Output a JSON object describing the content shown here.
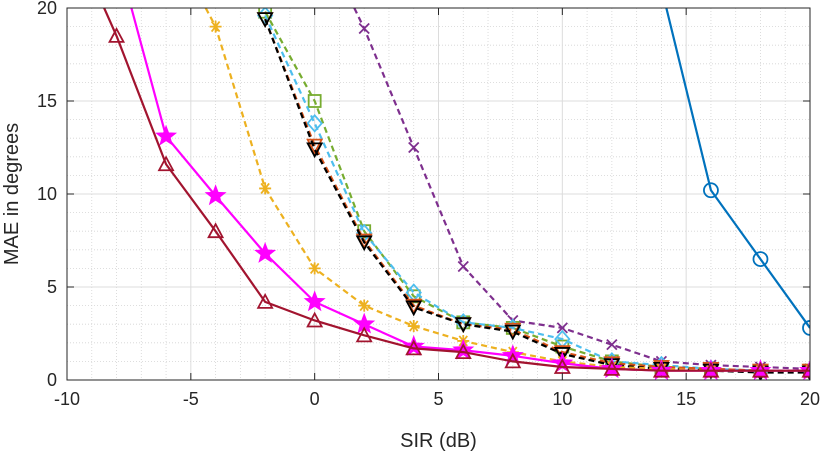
{
  "chart_data": {
    "type": "line",
    "title": "",
    "xlabel": "SIR (dB)",
    "ylabel": "MAE in degrees",
    "xlim": [
      -10,
      20
    ],
    "ylim": [
      0,
      20
    ],
    "xticks": [
      -10,
      -5,
      0,
      5,
      10,
      15,
      20
    ],
    "yticks": [
      0,
      5,
      10,
      15,
      20
    ],
    "xtick_labels": [
      "-10",
      "-5",
      "0",
      "5",
      "10",
      "15",
      "20"
    ],
    "ytick_labels": [
      "0",
      "5",
      "10",
      "15",
      "20"
    ],
    "grid": true,
    "minor_grid": true,
    "legend": "none",
    "series": [
      {
        "key": "blue-circle",
        "color": "#0072BD",
        "dash": "solid",
        "marker": "circle",
        "x": [
          14.2,
          16,
          18,
          20
        ],
        "y": [
          20,
          10.2,
          6.5,
          2.8
        ]
      },
      {
        "key": "purple-x",
        "color": "#7E2F8E",
        "dash": "dashed",
        "marker": "x",
        "x": [
          1.6,
          2,
          4,
          6,
          8,
          10,
          12,
          14,
          16,
          18,
          20
        ],
        "y": [
          20,
          18.9,
          12.5,
          6.1,
          3.2,
          2.8,
          1.9,
          1.0,
          0.8,
          0.7,
          0.6
        ]
      },
      {
        "key": "green-square",
        "color": "#77AC30",
        "dash": "dashed",
        "marker": "square",
        "x": [
          -2,
          0,
          2,
          4,
          6,
          8,
          10,
          12,
          14,
          16,
          18,
          20
        ],
        "y": [
          19.8,
          15.0,
          8.0,
          4.5,
          3.1,
          2.8,
          1.8,
          1.0,
          0.7,
          0.6,
          0.5,
          0.5
        ]
      },
      {
        "key": "cyan-diamond",
        "color": "#4DBEEE",
        "dash": "dashed",
        "marker": "diamond",
        "x": [
          -2,
          0,
          2,
          4,
          6,
          8,
          10,
          12,
          14,
          16,
          18,
          20
        ],
        "y": [
          19.6,
          13.8,
          7.9,
          4.7,
          3.1,
          2.8,
          2.2,
          1.0,
          0.8,
          0.6,
          0.5,
          0.5
        ]
      },
      {
        "key": "orange-triangle",
        "color": "#D95319",
        "dash": "dashed",
        "marker": "triangle-down",
        "x": [
          -2,
          0,
          2,
          4,
          6,
          8,
          10,
          12,
          14,
          16,
          18,
          20
        ],
        "y": [
          19.4,
          12.6,
          7.5,
          4.0,
          3.0,
          2.7,
          1.5,
          0.9,
          0.7,
          0.6,
          0.5,
          0.5
        ]
      },
      {
        "key": "black-triangle",
        "color": "#000000",
        "dash": "dashed",
        "marker": "triangle-down",
        "x": [
          -2,
          0,
          2,
          4,
          6,
          8,
          10,
          12,
          14,
          16,
          18,
          20
        ],
        "y": [
          19.4,
          12.4,
          7.4,
          3.9,
          3.0,
          2.6,
          1.4,
          0.8,
          0.6,
          0.5,
          0.4,
          0.4
        ]
      },
      {
        "key": "yellow-asterisk",
        "color": "#EDB120",
        "dash": "dashed",
        "marker": "asterisk",
        "x": [
          -4.4,
          -4,
          -2,
          0,
          2,
          4,
          6,
          8,
          10,
          12,
          14,
          16,
          18,
          20
        ],
        "y": [
          20,
          19.0,
          10.3,
          6.0,
          4.0,
          2.9,
          2.1,
          1.5,
          1.0,
          0.7,
          0.6,
          0.5,
          0.5,
          0.5
        ]
      },
      {
        "key": "magenta-star",
        "color": "#FF00FF",
        "dash": "solid",
        "marker": "star",
        "x": [
          -7.4,
          -6,
          -4,
          -2,
          0,
          2,
          4,
          6,
          8,
          10,
          12,
          14,
          16,
          18,
          20
        ],
        "y": [
          20,
          13.1,
          9.9,
          6.8,
          4.2,
          3.0,
          1.8,
          1.6,
          1.3,
          0.9,
          0.6,
          0.5,
          0.5,
          0.5,
          0.5
        ]
      },
      {
        "key": "darkred-triangle",
        "color": "#A2142F",
        "dash": "solid",
        "marker": "triangle-up",
        "x": [
          -8.5,
          -8,
          -6,
          -4,
          -2,
          0,
          2,
          4,
          6,
          8,
          10,
          12,
          14,
          16,
          18,
          20
        ],
        "y": [
          20,
          18.5,
          11.6,
          8.0,
          4.2,
          3.2,
          2.4,
          1.7,
          1.5,
          1.0,
          0.7,
          0.6,
          0.5,
          0.5,
          0.5,
          0.5
        ]
      }
    ]
  }
}
